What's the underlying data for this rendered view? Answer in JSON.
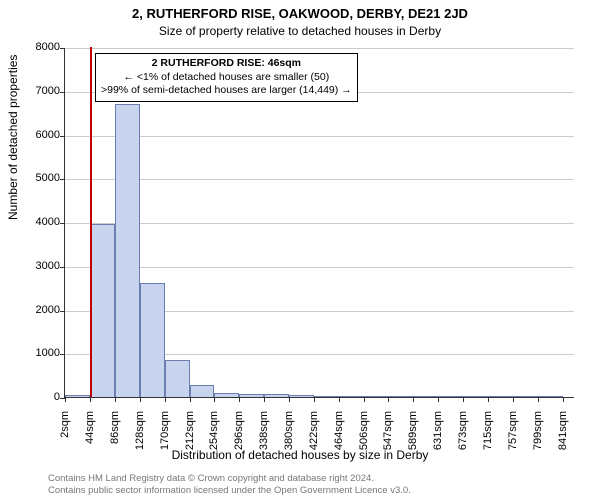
{
  "title_main": "2, RUTHERFORD RISE, OAKWOOD, DERBY, DE21 2JD",
  "title_sub": "Size of property relative to detached houses in Derby",
  "y_axis_label": "Number of detached properties",
  "x_axis_label": "Distribution of detached houses by size in Derby",
  "annotation": {
    "title": "2 RUTHERFORD RISE: 46sqm",
    "line1": "← <1% of detached houses are smaller (50)",
    "line2": ">99% of semi-detached houses are larger (14,449) →"
  },
  "chart": {
    "type": "histogram",
    "ylim": [
      0,
      8000
    ],
    "ytick_step": 1000,
    "yticks": [
      0,
      1000,
      2000,
      3000,
      4000,
      5000,
      6000,
      7000,
      8000
    ],
    "x_tick_labels": [
      "2sqm",
      "44sqm",
      "86sqm",
      "128sqm",
      "170sqm",
      "212sqm",
      "254sqm",
      "296sqm",
      "338sqm",
      "380sqm",
      "422sqm",
      "464sqm",
      "506sqm",
      "547sqm",
      "589sqm",
      "631sqm",
      "673sqm",
      "715sqm",
      "757sqm",
      "799sqm",
      "841sqm"
    ],
    "x_tick_values": [
      2,
      44,
      86,
      128,
      170,
      212,
      254,
      296,
      338,
      380,
      422,
      464,
      506,
      547,
      589,
      631,
      673,
      715,
      757,
      799,
      841
    ],
    "x_range": [
      2,
      862
    ],
    "bars": [
      {
        "x0": 2,
        "x1": 44,
        "count": 50
      },
      {
        "x0": 44,
        "x1": 86,
        "count": 3950
      },
      {
        "x0": 86,
        "x1": 128,
        "count": 6700
      },
      {
        "x0": 128,
        "x1": 170,
        "count": 2600
      },
      {
        "x0": 170,
        "x1": 212,
        "count": 850
      },
      {
        "x0": 212,
        "x1": 254,
        "count": 280
      },
      {
        "x0": 254,
        "x1": 296,
        "count": 100
      },
      {
        "x0": 296,
        "x1": 338,
        "count": 70
      },
      {
        "x0": 338,
        "x1": 380,
        "count": 60
      },
      {
        "x0": 380,
        "x1": 422,
        "count": 50
      },
      {
        "x0": 422,
        "x1": 464,
        "count": 10
      },
      {
        "x0": 464,
        "x1": 506,
        "count": 5
      },
      {
        "x0": 506,
        "x1": 547,
        "count": 5
      },
      {
        "x0": 547,
        "x1": 589,
        "count": 5
      },
      {
        "x0": 589,
        "x1": 631,
        "count": 2
      },
      {
        "x0": 631,
        "x1": 673,
        "count": 2
      },
      {
        "x0": 673,
        "x1": 715,
        "count": 2
      },
      {
        "x0": 715,
        "x1": 757,
        "count": 2
      },
      {
        "x0": 757,
        "x1": 799,
        "count": 2
      },
      {
        "x0": 799,
        "x1": 841,
        "count": 2
      }
    ],
    "bar_fill": "#c8d4ee",
    "bar_stroke": "#6a7fb0",
    "marker_value": 46,
    "marker_color": "#c00000",
    "grid_color": "#cccccc",
    "background": "#ffffff"
  },
  "footer1": "Contains HM Land Registry data © Crown copyright and database right 2024.",
  "footer2": "Contains public sector information licensed under the Open Government Licence v3.0."
}
